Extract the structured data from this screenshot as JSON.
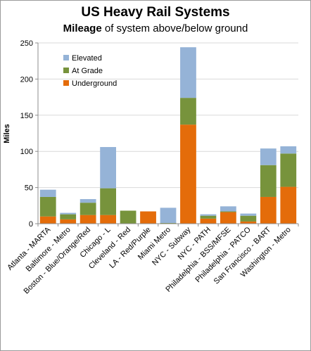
{
  "chart_data": {
    "type": "bar",
    "stacked": true,
    "title": "US Heavy Rail Systems",
    "subtitle_bold": "Mileage",
    "subtitle_rest": " of system above/below ground",
    "xlabel": "",
    "ylabel": "Miles",
    "ylim": [
      0,
      250
    ],
    "yticks": [
      0,
      50,
      100,
      150,
      200,
      250
    ],
    "grid": true,
    "legend_position": "top-left",
    "categories": [
      "Atlanta - MARTA",
      "Baltimore - Metro",
      "Boston - Blue/Orange/Red",
      "Chicago - L",
      "Cleveland - Red",
      "LA - Red/Purple",
      "Miami Metro",
      "NYC - Subway",
      "NYC - PATH",
      "Philadelphia - BSS/MFSE",
      "Philadelphia - PATCO",
      "San Francisco - BART",
      "Washington - Metro"
    ],
    "series": [
      {
        "name": "Underground",
        "color": "#e46c0a",
        "values": [
          10,
          6,
          12,
          12,
          0,
          17,
          0,
          137,
          7,
          16,
          3,
          37,
          51
        ]
      },
      {
        "name": "At Grade",
        "color": "#77933c",
        "values": [
          27,
          7,
          17,
          37,
          18,
          0,
          1,
          37,
          4,
          1,
          8,
          44,
          46
        ]
      },
      {
        "name": "Elevated",
        "color": "#95b3d7",
        "values": [
          10,
          2,
          5,
          57,
          0,
          0,
          21,
          70,
          2,
          7,
          3,
          23,
          10
        ]
      }
    ],
    "legend_order": [
      "Elevated",
      "At Grade",
      "Underground"
    ]
  },
  "colors": {
    "grid": "#d9d9d9",
    "axis": "#8c8c8c"
  }
}
